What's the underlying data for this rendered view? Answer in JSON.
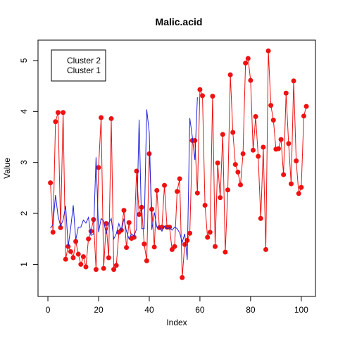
{
  "chart_data": {
    "type": "line",
    "title": "Malic.acid",
    "x_label": "Index",
    "y_label": "Value",
    "x": [
      1,
      2,
      3,
      4,
      5,
      6,
      7,
      8,
      9,
      10,
      11,
      12,
      13,
      14,
      15,
      16,
      17,
      18,
      19,
      20,
      21,
      22,
      23,
      24,
      25,
      26,
      27,
      28,
      29,
      30,
      31,
      32,
      33,
      34,
      35,
      36,
      37,
      38,
      39,
      40,
      41,
      42,
      43,
      44,
      45,
      46,
      47,
      48,
      49,
      50,
      51,
      52,
      53,
      54,
      55,
      56,
      57,
      58,
      59,
      60,
      61,
      62,
      63,
      64,
      65,
      66,
      67,
      68,
      69,
      70,
      71,
      72,
      73,
      74,
      75,
      76,
      77,
      78,
      79,
      80,
      81,
      82,
      83,
      84,
      85,
      86,
      87,
      88,
      89,
      90,
      91,
      92,
      93,
      94,
      95,
      96,
      97,
      98,
      99,
      100,
      101,
      102
    ],
    "series": [
      {
        "name": "Cluster 2",
        "color": "#ee1111",
        "markers": true,
        "values": [
          2.6,
          1.63,
          3.8,
          3.98,
          1.72,
          3.98,
          1.1,
          1.35,
          1.25,
          1.13,
          1.45,
          1.2,
          1.0,
          1.15,
          0.95,
          1.5,
          1.65,
          1.88,
          0.9,
          2.9,
          3.88,
          0.92,
          1.8,
          1.13,
          3.86,
          0.9,
          0.98,
          1.63,
          1.67,
          2.06,
          1.33,
          1.82,
          1.51,
          1.53,
          2.83,
          1.98,
          2.12,
          1.4,
          1.07,
          3.17,
          2.08,
          1.34,
          2.45,
          1.72,
          1.73,
          2.55,
          1.73,
          1.73,
          1.29,
          1.35,
          2.43,
          2.68,
          0.74,
          1.39,
          1.47,
          1.61,
          3.43,
          3.43,
          2.4,
          4.43,
          4.31,
          2.16,
          1.53,
          1.63,
          4.3,
          1.35,
          2.99,
          2.31,
          3.55,
          1.24,
          2.46,
          4.72,
          3.59,
          2.96,
          2.81,
          2.56,
          3.17,
          4.95,
          5.04,
          4.61,
          3.24,
          3.9,
          3.12,
          1.9,
          3.3,
          1.29,
          5.19,
          4.12,
          3.83,
          3.26,
          3.27,
          3.45,
          2.76,
          4.36,
          3.37,
          2.58,
          4.6,
          3.03,
          2.39,
          2.51,
          3.91,
          4.1
        ]
      },
      {
        "name": "Cluster 1",
        "color": "#2222dd",
        "markers": false,
        "values": [
          1.71,
          1.78,
          2.36,
          1.95,
          1.75,
          1.87,
          2.15,
          1.35,
          1.72,
          2.16,
          1.48,
          1.73,
          1.73,
          1.87,
          1.81,
          1.92,
          1.57,
          1.59,
          3.1,
          1.63,
          1.9,
          1.85,
          1.6,
          1.81,
          1.9,
          1.5,
          1.6,
          1.8,
          1.65,
          1.9,
          1.65,
          1.5,
          1.6,
          1.55,
          1.7,
          3.84,
          1.7,
          1.7,
          4.04,
          3.59,
          1.68,
          2.02,
          1.73,
          1.73,
          1.65,
          1.75,
          1.7,
          1.72,
          1.67,
          1.73,
          1.7,
          1.62,
          1.43,
          1.6,
          1.09,
          3.87,
          3.5,
          3.05,
          4.28,
          null,
          null,
          null,
          null,
          null,
          null,
          null,
          null,
          null,
          null,
          null,
          null,
          null,
          null,
          null,
          null,
          null,
          null,
          null,
          null,
          null,
          null,
          null,
          null,
          null,
          null,
          null,
          null,
          null,
          null,
          null,
          null,
          null,
          null,
          null,
          null,
          null,
          null,
          null,
          null,
          null,
          null,
          null
        ]
      }
    ],
    "xlim": [
      -3.9,
      105.6
    ],
    "ylim": [
      0.37,
      5.4
    ],
    "xticks": [
      0,
      20,
      40,
      60,
      80,
      100
    ],
    "yticks": [
      1,
      2,
      3,
      4,
      5
    ],
    "legend": "top-left"
  }
}
